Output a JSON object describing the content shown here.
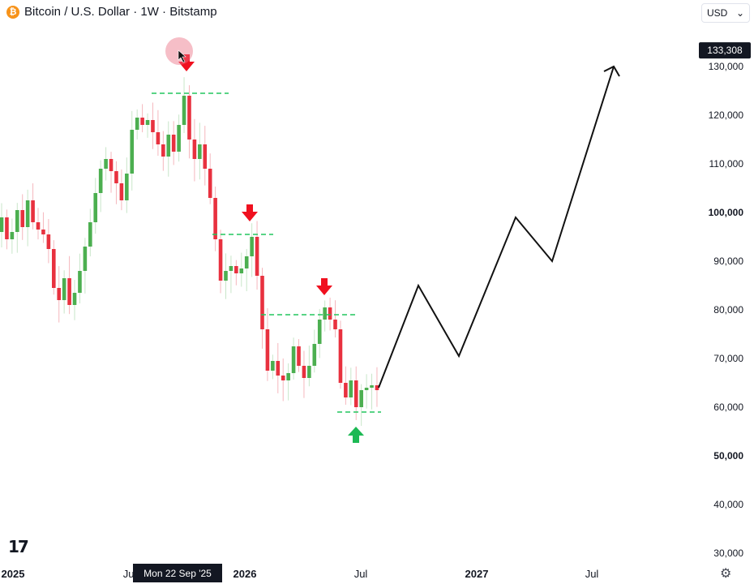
{
  "header": {
    "title": "Bitcoin / U.S. Dollar · 1W · Bitstamp",
    "currency": "USD",
    "coin_icon": "bitcoin-icon"
  },
  "current_price_label": "133,308",
  "crosshair_date_label": "Mon 22 Sep '25",
  "colors": {
    "up": "#4caf50",
    "down": "#e8313f",
    "projection": "#111111",
    "level": "#22c55e",
    "arrow_down": "#f0101f",
    "arrow_up": "#1db954"
  },
  "chart_data": {
    "type": "candlestick",
    "x_axis_labels": [
      {
        "date": "2025",
        "bold": true
      },
      {
        "date": "Jul",
        "bold": false
      },
      {
        "date": "2026",
        "bold": true
      },
      {
        "date": "Jul",
        "bold": false
      },
      {
        "date": "2027",
        "bold": true
      },
      {
        "date": "Jul",
        "bold": false
      }
    ],
    "y_ticks": [
      {
        "value": 30000,
        "label": "30,000",
        "bold": false
      },
      {
        "value": 40000,
        "label": "40,000",
        "bold": false
      },
      {
        "value": 50000,
        "label": "50,000",
        "bold": true
      },
      {
        "value": 60000,
        "label": "60,000",
        "bold": false
      },
      {
        "value": 70000,
        "label": "70,000",
        "bold": false
      },
      {
        "value": 80000,
        "label": "80,000",
        "bold": false
      },
      {
        "value": 90000,
        "label": "90,000",
        "bold": false
      },
      {
        "value": 100000,
        "label": "100,000",
        "bold": true
      },
      {
        "value": 110000,
        "label": "110,000",
        "bold": false
      },
      {
        "value": 120000,
        "label": "120,000",
        "bold": false
      },
      {
        "value": 130000,
        "label": "130,000",
        "bold": false
      }
    ],
    "ylim": [
      28000,
      140000
    ],
    "closes": [
      99000,
      94500,
      96000,
      100500,
      97000,
      102500,
      98000,
      96500,
      95500,
      92500,
      84500,
      82000,
      86500,
      81000,
      83500,
      88000,
      93000,
      98000,
      104000,
      109000,
      111000,
      108500,
      106000,
      102500,
      108000,
      117000,
      119500,
      118000,
      119000,
      116500,
      114000,
      111500,
      116000,
      112500,
      118000,
      124000,
      115000,
      111000,
      114000,
      109000,
      103000,
      94500,
      86000,
      88000,
      89000,
      87500,
      88500,
      91000,
      95000,
      87000,
      76000,
      67500,
      69500,
      66500,
      65500,
      67000,
      72500,
      68500,
      66000,
      68500,
      73000,
      78000,
      80500,
      78000,
      76000,
      65000,
      62000,
      65500,
      60000,
      63500,
      64000,
      64500,
      63500
    ],
    "support_resistance_levels": [
      124500,
      95500,
      79000,
      59000
    ],
    "projection_path": [
      64000,
      85000,
      70500,
      99000,
      90000,
      130000
    ],
    "annotations": [
      "sell-arrow",
      "sell-arrow",
      "sell-arrow",
      "buy-arrow"
    ]
  }
}
